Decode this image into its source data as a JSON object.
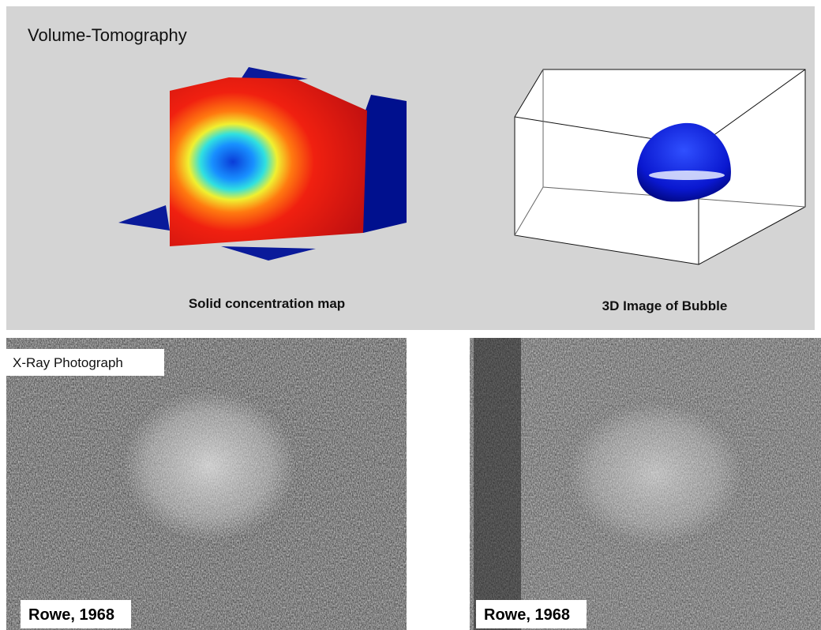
{
  "header": {
    "title": "Volume-Tomography"
  },
  "panels": [
    {
      "caption": "Solid concentration map"
    },
    {
      "caption": "3D Image of Bubble"
    }
  ],
  "photos": {
    "label": "X-Ray Photograph",
    "credits": [
      "Rowe, 1968",
      "Rowe, 1968"
    ]
  }
}
